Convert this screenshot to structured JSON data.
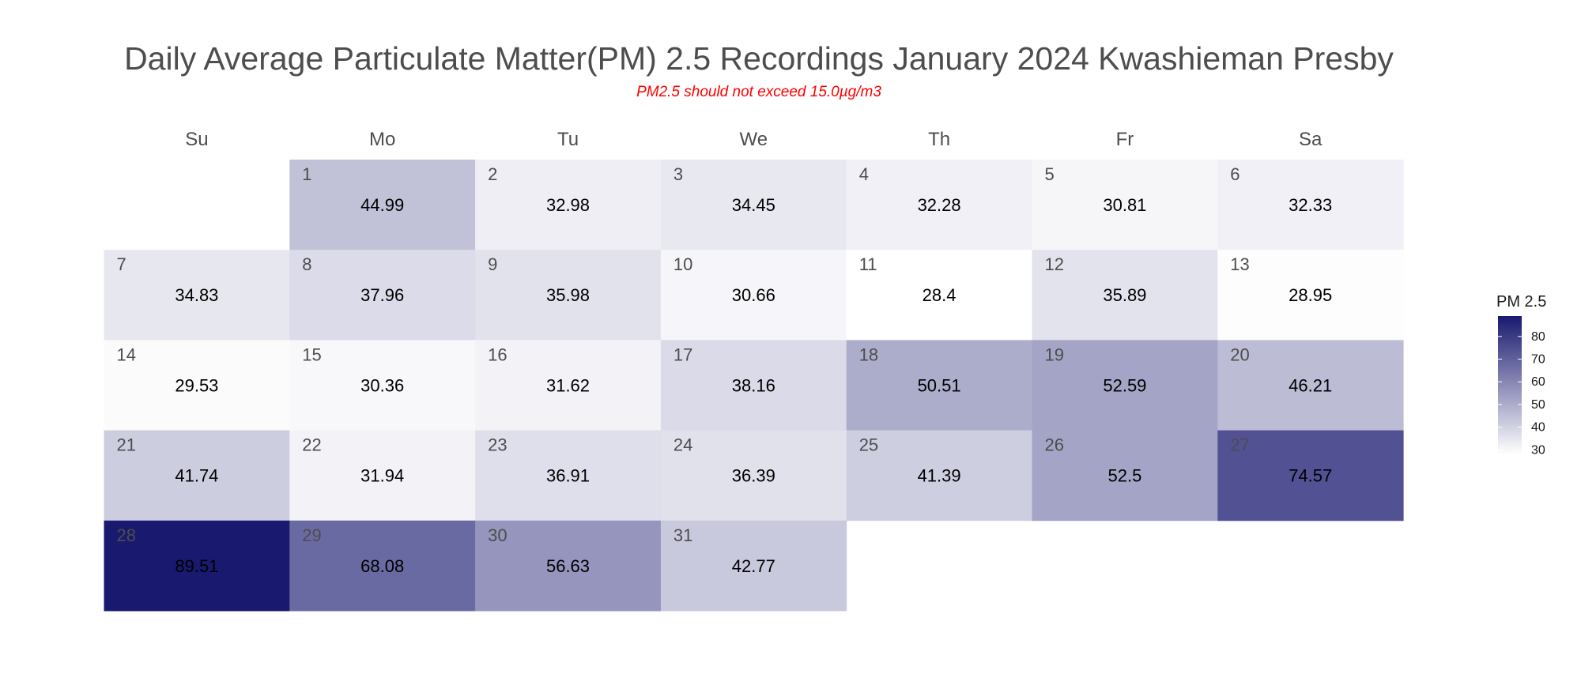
{
  "chart_data": {
    "type": "heatmap",
    "title": "Daily Average Particulate Matter(PM) 2.5 Recordings January 2024 Kwashieman Presby",
    "subtitle": "PM2.5 should not exceed 15.0µg/m3",
    "weekdays": [
      "Su",
      "Mo",
      "Tu",
      "We",
      "Th",
      "Fr",
      "Sa"
    ],
    "first_weekday_index": 1,
    "days": [
      1,
      2,
      3,
      4,
      5,
      6,
      7,
      8,
      9,
      10,
      11,
      12,
      13,
      14,
      15,
      16,
      17,
      18,
      19,
      20,
      21,
      22,
      23,
      24,
      25,
      26,
      27,
      28,
      29,
      30,
      31
    ],
    "values": [
      44.99,
      32.98,
      34.45,
      32.28,
      30.81,
      32.33,
      34.83,
      37.96,
      35.98,
      30.66,
      28.4,
      35.89,
      28.95,
      29.53,
      30.36,
      31.62,
      38.16,
      50.51,
      52.59,
      46.21,
      41.74,
      31.94,
      36.91,
      36.39,
      41.39,
      52.5,
      74.57,
      89.51,
      68.08,
      56.63,
      42.77
    ],
    "legend": {
      "title": "PM 2.5",
      "ticks": [
        30,
        40,
        50,
        60,
        70,
        80
      ],
      "range": [
        28.4,
        89.51
      ]
    },
    "colors": {
      "low": "#ffffff",
      "high": "#191970"
    }
  }
}
